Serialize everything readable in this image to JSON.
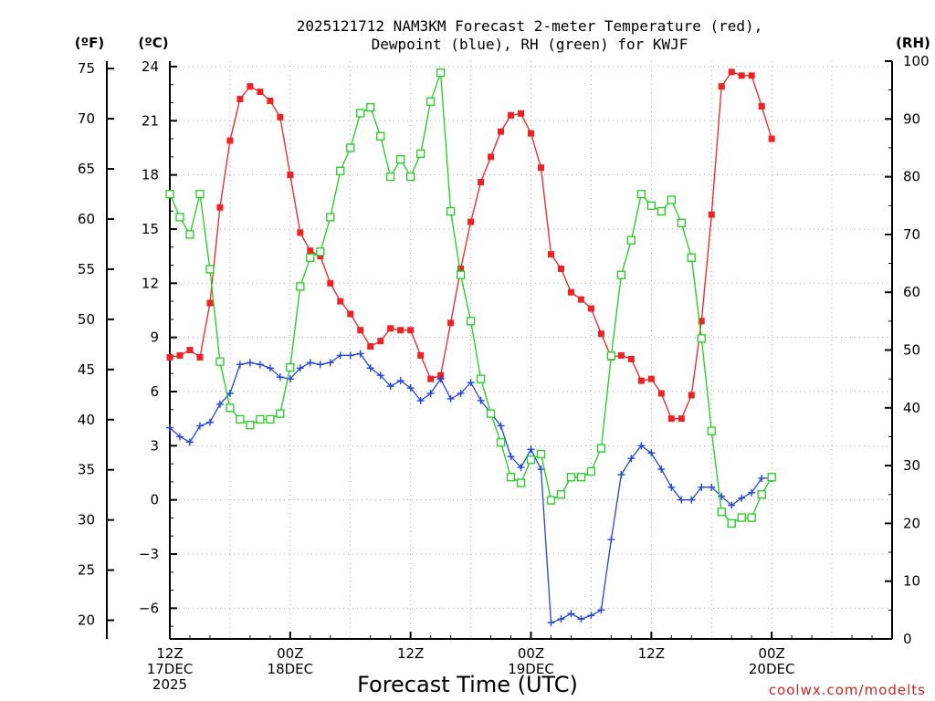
{
  "chart_data": {
    "type": "line",
    "title_line1": "2025121712 NAM3KM Forecast 2-meter Temperature (red),",
    "title_line2": "Dewpoint (blue), RH (green) for KWJF",
    "xlabel": "Forecast Time (UTC)",
    "credit": "coolwx.com/modelts",
    "x_range_hours": [
      0,
      36
    ],
    "x_ticks": [
      {
        "hour": 0,
        "lines": [
          "12Z",
          "17DEC",
          "2025"
        ]
      },
      {
        "hour": 6,
        "lines": [
          "00Z",
          "18DEC"
        ]
      },
      {
        "hour": 12,
        "lines": [
          "12Z"
        ]
      },
      {
        "hour": 18,
        "lines": [
          "00Z",
          "19DEC"
        ]
      },
      {
        "hour": 24,
        "lines": [
          "12Z"
        ]
      },
      {
        "hour": 30,
        "lines": [
          "00Z",
          "20DEC"
        ]
      }
    ],
    "celsius_axis": {
      "label": "(ºC)",
      "range": [
        -7.7,
        24.3
      ],
      "ticks": [
        24,
        21,
        18,
        15,
        12,
        9,
        6,
        3,
        0,
        -3,
        -6
      ]
    },
    "fahrenheit_axis": {
      "label": "(ºF)",
      "ticks": [
        75,
        70,
        65,
        60,
        55,
        50,
        45,
        40,
        35,
        30,
        25,
        20
      ]
    },
    "rh_axis": {
      "label": "(RH)",
      "range": [
        0,
        100
      ],
      "ticks": [
        100,
        90,
        80,
        70,
        60,
        50,
        40,
        30,
        20,
        10,
        0
      ]
    },
    "x_hours": [
      0,
      0.5,
      1,
      1.5,
      2,
      2.5,
      3,
      3.5,
      4,
      4.5,
      5,
      5.5,
      6,
      6.5,
      7,
      7.5,
      8,
      8.5,
      9,
      9.5,
      10,
      10.5,
      11,
      11.5,
      12,
      12.5,
      13,
      13.5,
      14,
      14.5,
      15,
      15.5,
      16,
      16.5,
      17,
      17.5,
      18,
      18.5,
      19,
      19.5,
      20,
      20.5,
      21,
      21.5,
      22,
      22.5,
      23,
      23.5,
      24,
      24.5,
      25,
      25.5,
      26,
      26.5,
      27,
      27.5,
      28,
      28.5,
      29,
      29.5,
      30
    ],
    "series": [
      {
        "name": "Temperature (°C)",
        "color": "#ee2222",
        "marker": "filled-square",
        "values": [
          7.9,
          8.0,
          8.3,
          7.9,
          10.9,
          16.2,
          19.9,
          22.2,
          22.9,
          22.6,
          22.1,
          21.2,
          18.0,
          14.8,
          13.8,
          13.5,
          12.0,
          11.0,
          10.3,
          9.4,
          8.5,
          8.8,
          9.5,
          9.4,
          9.4,
          8.0,
          6.7,
          6.9,
          9.8,
          12.8,
          15.4,
          17.6,
          19.0,
          20.4,
          21.3,
          21.4,
          20.3,
          18.4,
          13.6,
          12.8,
          11.5,
          11.1,
          10.6,
          9.2,
          7.9,
          8.0,
          7.8,
          6.6,
          6.7,
          5.9,
          4.5,
          4.5,
          5.8,
          9.9,
          15.8,
          22.9,
          23.7,
          23.5,
          23.5,
          21.8,
          20.0
        ]
      },
      {
        "name": "Dewpoint (°C)",
        "color": "#2244dd",
        "marker": "plus",
        "values": [
          4.0,
          3.5,
          3.2,
          4.1,
          4.3,
          5.3,
          5.9,
          7.5,
          7.6,
          7.5,
          7.3,
          6.8,
          6.7,
          7.3,
          7.6,
          7.5,
          7.6,
          8.0,
          8.0,
          8.1,
          7.3,
          6.9,
          6.3,
          6.6,
          6.2,
          5.5,
          5.9,
          6.7,
          5.6,
          5.9,
          6.5,
          5.5,
          4.8,
          4.1,
          2.4,
          1.8,
          2.8,
          1.7,
          -6.8,
          -6.6,
          -6.3,
          -6.6,
          -6.4,
          -6.1,
          -2.2,
          1.4,
          2.3,
          3.0,
          2.6,
          1.7,
          0.7,
          0.0,
          0.0,
          0.7,
          0.7,
          0.2,
          -0.3,
          0.1,
          0.4,
          1.2,
          1.2
        ]
      },
      {
        "name": "RH (%)",
        "color": "#22cc22",
        "marker": "open-square",
        "values": [
          77,
          73,
          70,
          77,
          64,
          48,
          40,
          38,
          37,
          38,
          38,
          39,
          47,
          61,
          66,
          67,
          73,
          81,
          85,
          91,
          92,
          87,
          80,
          83,
          80,
          84,
          93,
          98,
          74,
          63,
          55,
          45,
          39,
          34,
          28,
          27,
          31,
          32,
          24,
          25,
          28,
          28,
          29,
          33,
          49,
          63,
          69,
          77,
          75,
          74,
          76,
          72,
          66,
          52,
          36,
          22,
          20,
          21,
          21,
          25,
          28
        ]
      }
    ]
  }
}
